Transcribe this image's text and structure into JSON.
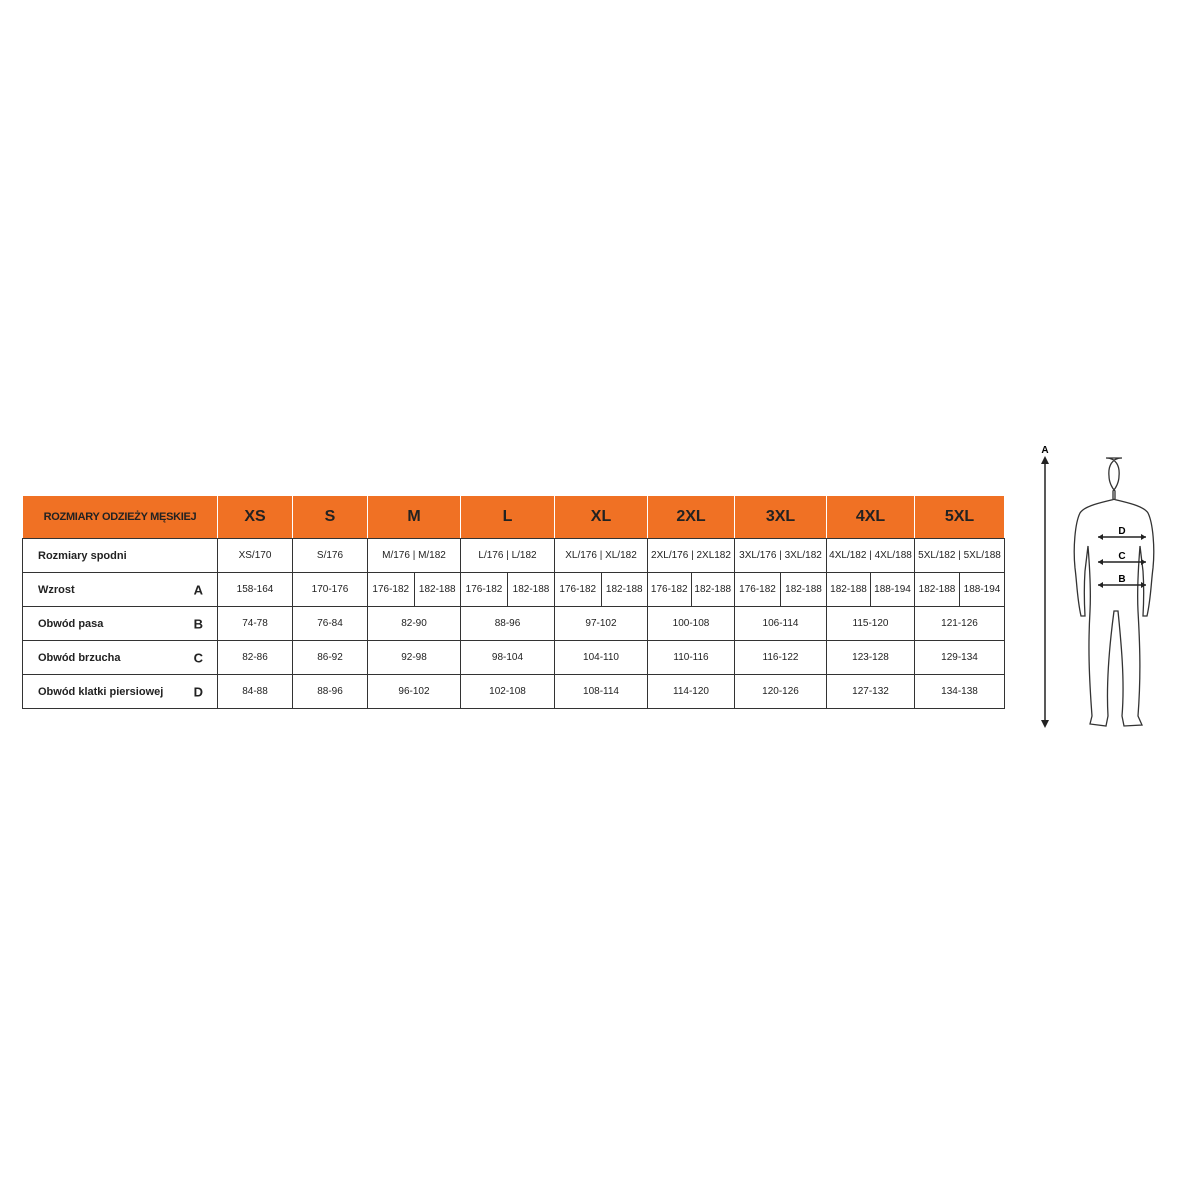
{
  "table": {
    "title": "ROZMIARY ODZIEŻY MĘSKIEJ",
    "sizes": [
      "XS",
      "S",
      "M",
      "L",
      "XL",
      "2XL",
      "3XL",
      "4XL",
      "5XL"
    ],
    "rows": {
      "pants": {
        "label": "Rozmiary spodni",
        "values": [
          "XS/170",
          "S/176",
          "M/176 | M/182",
          "L/176 | L/182",
          "XL/176 | XL/182",
          "2XL/176 | 2XL182",
          "3XL/176 | 3XL/182",
          "4XL/182 | 4XL/188",
          "5XL/182 | 5XL/188"
        ]
      },
      "height": {
        "label": "Wzrost",
        "letter": "A",
        "values": [
          [
            "158-164"
          ],
          [
            "170-176"
          ],
          [
            "176-182",
            "182-188"
          ],
          [
            "176-182",
            "182-188"
          ],
          [
            "176-182",
            "182-188"
          ],
          [
            "176-182",
            "182-188"
          ],
          [
            "176-182",
            "182-188"
          ],
          [
            "182-188",
            "188-194"
          ],
          [
            "182-188",
            "188-194"
          ]
        ]
      },
      "waist": {
        "label": "Obwód pasa",
        "letter": "B",
        "values": [
          "74-78",
          "76-84",
          "82-90",
          "88-96",
          "97-102",
          "100-108",
          "106-114",
          "115-120",
          "121-126"
        ]
      },
      "belly": {
        "label": "Obwód brzucha",
        "letter": "C",
        "values": [
          "82-86",
          "86-92",
          "92-98",
          "98-104",
          "104-110",
          "110-116",
          "116-122",
          "123-128",
          "129-134"
        ]
      },
      "chest": {
        "label": "Obwód klatki piersiowej",
        "letter": "D",
        "values": [
          "84-88",
          "88-96",
          "96-102",
          "102-108",
          "108-114",
          "114-120",
          "120-126",
          "127-132",
          "134-138"
        ]
      }
    }
  },
  "figure": {
    "height_label": "A",
    "chest_label": "D",
    "belly_label": "C",
    "waist_label": "B"
  },
  "colors": {
    "header": "#f07124"
  }
}
